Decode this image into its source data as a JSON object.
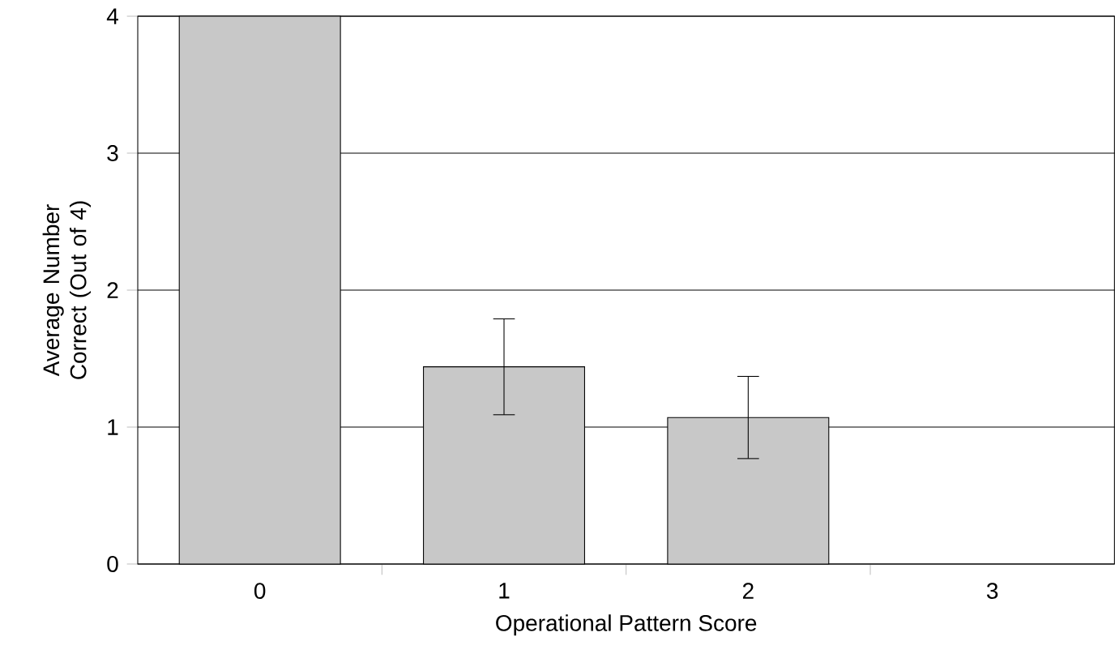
{
  "chart_data": {
    "type": "bar",
    "categories": [
      "0",
      "1",
      "2",
      "3"
    ],
    "values": [
      4,
      1.44,
      1.07,
      null
    ],
    "errors": [
      null,
      0.35,
      0.3,
      null
    ],
    "color": "#c8c8c8",
    "xlabel": "Operational Pattern Score",
    "ylabel": "Average Number Correct (Out of 4)",
    "ylim": [
      0,
      4
    ],
    "yticks": [
      0,
      1,
      2,
      3,
      4
    ],
    "grid": "y"
  }
}
